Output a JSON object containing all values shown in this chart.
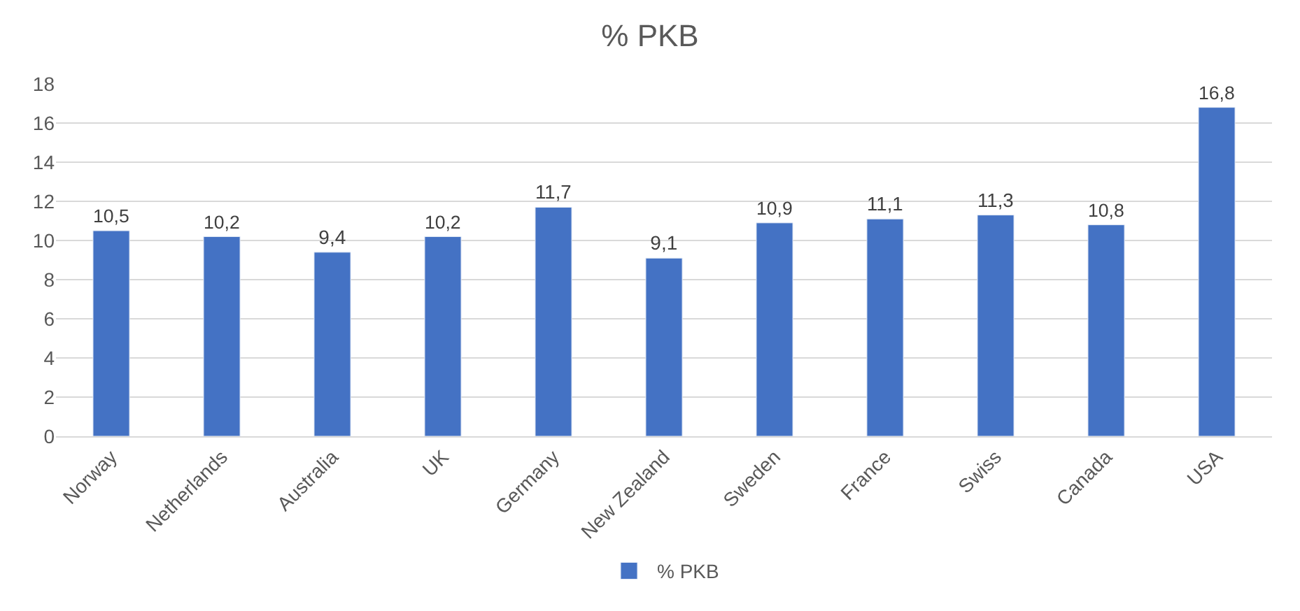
{
  "chart_data": {
    "type": "bar",
    "title": "% PKB",
    "categories": [
      "Norway",
      "Netherlands",
      "Australia",
      "UK",
      "Germany",
      "New Zealand",
      "Sweden",
      "France",
      "Swiss",
      "Canada",
      "USA"
    ],
    "series": [
      {
        "name": "% PKB",
        "color": "#4472c4",
        "values": [
          10.5,
          10.2,
          9.4,
          10.2,
          11.7,
          9.1,
          10.9,
          11.1,
          11.3,
          10.8,
          16.8
        ],
        "value_labels": [
          "10,5",
          "10,2",
          "9,4",
          "10,2",
          "11,7",
          "9,1",
          "10,9",
          "11,1",
          "11,3",
          "10,8",
          "16,8"
        ]
      }
    ],
    "ylim": [
      0,
      18
    ],
    "yticks": [
      0,
      2,
      4,
      6,
      8,
      10,
      12,
      14,
      16,
      18
    ],
    "grid": "y",
    "legend": "bottom"
  }
}
